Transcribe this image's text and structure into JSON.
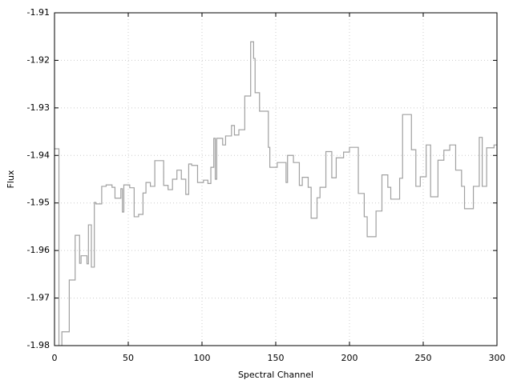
{
  "chart_data": {
    "type": "line",
    "step": "post",
    "xlabel": "Spectral Channel",
    "ylabel": "Flux",
    "color": "#a0a0a0",
    "grid": true,
    "xlim": [
      0,
      300
    ],
    "xticks": [
      0,
      50,
      100,
      150,
      200,
      250,
      300
    ],
    "ylim": [
      -1.98,
      -1.91
    ],
    "yticks": [
      -1.98,
      -1.97,
      -1.96,
      -1.95,
      -1.94,
      -1.93,
      -1.92,
      -1.91
    ],
    "x": [
      0,
      3,
      5,
      10,
      14,
      17,
      18,
      22,
      23,
      25,
      27,
      28,
      32,
      35,
      39,
      41,
      45,
      46,
      47,
      51,
      54,
      57,
      60,
      62,
      65,
      68,
      74,
      77,
      80,
      83,
      86,
      89,
      91,
      93,
      97,
      101,
      104,
      106,
      108,
      109,
      110,
      114,
      116,
      120,
      122,
      125,
      129,
      133,
      135,
      136,
      139,
      145,
      146,
      151,
      157,
      158,
      162,
      166,
      168,
      172,
      174,
      178,
      180,
      184,
      188,
      191,
      196,
      200,
      206,
      210,
      212,
      218,
      222,
      226,
      228,
      234,
      236,
      242,
      245,
      248,
      252,
      255,
      260,
      264,
      268,
      272,
      276,
      278,
      284,
      288,
      290,
      293,
      298
    ],
    "values": [
      -1.9386,
      -1.99,
      -1.9771,
      -1.9662,
      -1.9568,
      -1.9627,
      -1.9611,
      -1.9628,
      -1.9546,
      -1.9635,
      -1.9499,
      -1.9502,
      -1.9465,
      -1.9462,
      -1.9467,
      -1.949,
      -1.947,
      -1.9519,
      -1.9462,
      -1.9468,
      -1.9529,
      -1.9524,
      -1.9479,
      -1.9457,
      -1.9465,
      -1.9411,
      -1.9463,
      -1.9472,
      -1.945,
      -1.9431,
      -1.945,
      -1.9482,
      -1.9418,
      -1.9421,
      -1.9457,
      -1.9452,
      -1.9459,
      -1.9425,
      -1.9364,
      -1.945,
      -1.9364,
      -1.9378,
      -1.9359,
      -1.9337,
      -1.9357,
      -1.9346,
      -1.9275,
      -1.9161,
      -1.9196,
      -1.9268,
      -1.9307,
      -1.9383,
      -1.9425,
      -1.9415,
      -1.9457,
      -1.94,
      -1.9415,
      -1.9463,
      -1.9446,
      -1.9467,
      -1.9532,
      -1.9489,
      -1.9467,
      -1.9392,
      -1.9447,
      -1.9405,
      -1.9393,
      -1.9383,
      -1.948,
      -1.9529,
      -1.9571,
      -1.9517,
      -1.9441,
      -1.9467,
      -1.9492,
      -1.9448,
      -1.9314,
      -1.9388,
      -1.9465,
      -1.9445,
      -1.9378,
      -1.9487,
      -1.941,
      -1.9389,
      -1.9378,
      -1.9431,
      -1.9465,
      -1.9512,
      -1.9465,
      -1.9362,
      -1.9465,
      -1.9384,
      -1.9378
    ]
  }
}
